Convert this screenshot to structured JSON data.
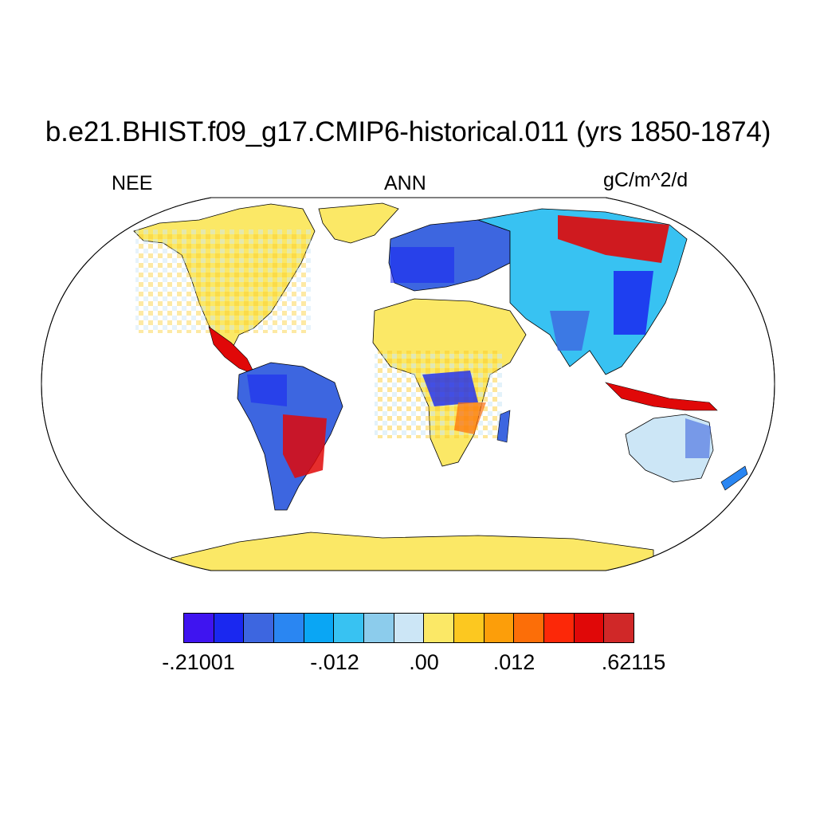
{
  "title": "b.e21.BHIST.f09_g17.CMIP6-historical.011 (yrs 1850-1874)",
  "left_label": "NEE",
  "center_label": "ANN",
  "right_label": "gC/m^2/d",
  "colorbar": {
    "colors": [
      "#3f14f0",
      "#1a28f0",
      "#3d66e0",
      "#2a86f2",
      "#0aa6f4",
      "#38c2f2",
      "#8cccec",
      "#cce6f6",
      "#fbe866",
      "#fcc820",
      "#fc9e0a",
      "#fc6e08",
      "#fc2808",
      "#e00808",
      "#d02828"
    ],
    "tick_labels": [
      "-.21001",
      "-.012",
      ".00",
      ".012",
      ".62115"
    ]
  },
  "palette": {
    "land_base": "#fbe866",
    "ocean": "#ffffff",
    "coast": "#000000"
  }
}
